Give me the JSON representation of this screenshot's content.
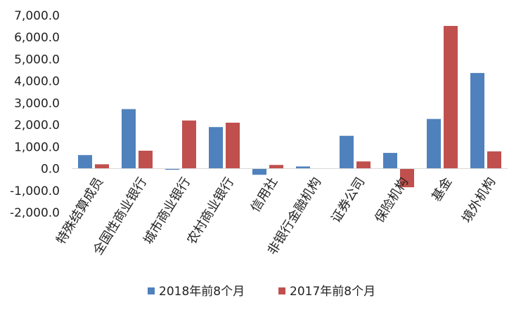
{
  "chart_data": {
    "type": "bar",
    "categories": [
      "特殊结算成员",
      "全国性商业银行",
      "城市商业银行",
      "农村商业银行",
      "信用社",
      "非银行金融机构",
      "证券公司",
      "保险机构",
      "基金",
      "境外机构"
    ],
    "series": [
      {
        "name": "2018年前8个月",
        "color": "#4f81bd",
        "values": [
          620,
          2720,
          -50,
          1900,
          -280,
          100,
          1500,
          720,
          2270,
          4370
        ]
      },
      {
        "name": "2017年前8个月",
        "color": "#c0504d",
        "values": [
          200,
          820,
          2200,
          2100,
          170,
          0,
          330,
          -850,
          6520,
          790
        ]
      }
    ],
    "yticks": [
      "7,000.0",
      "6,000.0",
      "5,000.0",
      "4,000.0",
      "3,000.0",
      "2,000.0",
      "1,000.0",
      "0.0",
      "-1,000.0",
      "-2,000.0"
    ],
    "ylim": [
      -2000,
      7000
    ],
    "ytick_step": 1000,
    "grid": false,
    "legend_position": "bottom",
    "xlabel": "",
    "ylabel": "",
    "title": ""
  }
}
